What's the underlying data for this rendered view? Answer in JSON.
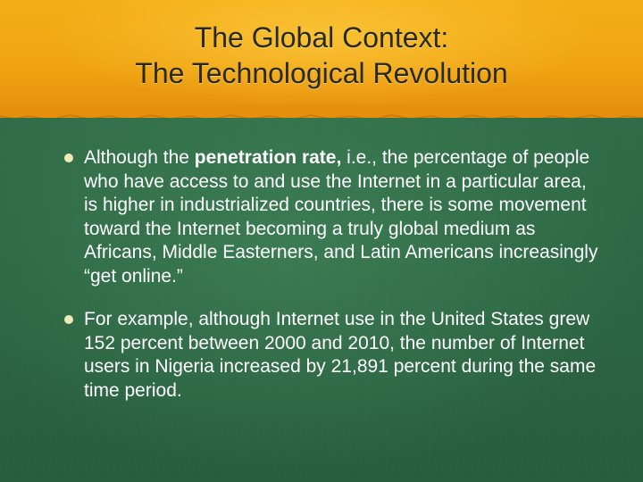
{
  "slide": {
    "title_line1": "The Global Context:",
    "title_line2": "The Technological Revolution",
    "bullets": [
      {
        "text_before": "Although the ",
        "bold": "penetration rate,",
        "text_after": " i.e., the percentage of people who have access to and use the Internet in a particular area, is higher in industrialized countries, there is some movement toward the Internet becoming a truly global medium as Africans, Middle Easterners, and Latin Americans increasingly “get online.”"
      },
      {
        "text": "For example, although Internet use in the United States grew 152 percent between 2000 and 2010, the number of Internet users in Nigeria increased by 21,891 percent during the same time period."
      }
    ]
  },
  "colors": {
    "header_orange": "#f4ae16",
    "body_green": "#2e6a45",
    "bullet_dot": "#f0e9b8",
    "title_text": "#2a2a1a",
    "body_text": "#ffffff"
  }
}
